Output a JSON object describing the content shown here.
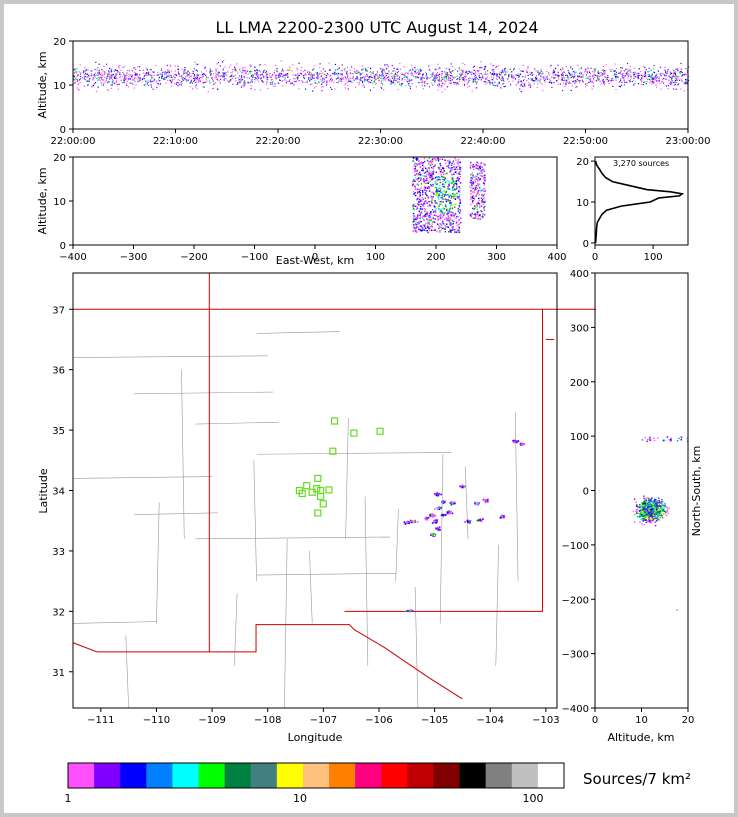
{
  "title": "LL LMA 2200-2300 UTC August 14, 2024",
  "time_panel": {
    "ylabel": "Altitude, km",
    "yticks": [
      0,
      10,
      20
    ],
    "xticks": [
      "22:00:00",
      "22:10:00",
      "22:20:00",
      "22:30:00",
      "22:40:00",
      "22:50:00",
      "23:00:00"
    ]
  },
  "ew_panel": {
    "ylabel": "Altitude, km",
    "xlabel": "East-West, km",
    "yticks": [
      0,
      10,
      20
    ],
    "xticks": [
      -400,
      -300,
      -200,
      -100,
      0,
      100,
      200,
      300,
      400
    ]
  },
  "hist_panel": {
    "sources_label": "3,270 sources",
    "xticks": [
      0,
      100
    ],
    "yticks": [
      0,
      10,
      20
    ]
  },
  "map_panel": {
    "xlabel": "Longitude",
    "ylabel": "Latitude",
    "xticks": [
      -111,
      -110,
      -109,
      -108,
      -107,
      -106,
      -105,
      -104,
      -103
    ],
    "yticks": [
      31,
      32,
      33,
      34,
      35,
      36,
      37
    ]
  },
  "ns_panel": {
    "xlabel": "Altitude, km",
    "ylabel": "North-South, km",
    "xticks": [
      0,
      10,
      20
    ],
    "yticks": [
      -400,
      -300,
      -200,
      -100,
      0,
      100,
      200,
      300,
      400
    ]
  },
  "colorbar": {
    "label": "Sources/7 km²",
    "ticks": [
      "1",
      "10",
      "100"
    ],
    "colors": [
      "#ff50ff",
      "#8000ff",
      "#0000ff",
      "#0080ff",
      "#00ffff",
      "#00ff00",
      "#008040",
      "#408080",
      "#ffff00",
      "#ffc080",
      "#ff8000",
      "#ff0080",
      "#ff0000",
      "#c00000",
      "#800000",
      "#000000",
      "#808080",
      "#c0c0c0",
      "#ffffff"
    ]
  },
  "chart_data": [
    {
      "type": "scatter",
      "panel": "altitude-vs-time",
      "x_range": [
        "22:00:00",
        "23:00:00"
      ],
      "ylim": [
        0,
        20
      ],
      "ylabel": "Altitude, km",
      "note_values": {
        "altitude_band_km": [
          5,
          20
        ],
        "densest_altitude_km": 12
      }
    },
    {
      "type": "scatter",
      "panel": "altitude-vs-east-west",
      "xlim": [
        -400,
        400
      ],
      "ylim": [
        0,
        20
      ],
      "xlabel": "East-West, km",
      "ylabel": "Altitude, km",
      "clusters": [
        {
          "x_range": [
            160,
            240
          ],
          "y_range": [
            3,
            20
          ]
        },
        {
          "x_range": [
            255,
            280
          ],
          "y_range": [
            6,
            19
          ]
        }
      ]
    },
    {
      "type": "line",
      "panel": "altitude-histogram",
      "total_sources": 3270,
      "xlim": [
        0,
        160
      ],
      "ylim": [
        -0.5,
        21
      ],
      "y": [
        0,
        2,
        4,
        5,
        6,
        7,
        8,
        9,
        9.5,
        10,
        11,
        11.5,
        12,
        12.5,
        13,
        14,
        15,
        16,
        17,
        18,
        19,
        20
      ],
      "x": [
        1,
        2,
        3,
        4,
        8,
        12,
        20,
        45,
        70,
        95,
        110,
        145,
        150,
        130,
        90,
        60,
        30,
        18,
        12,
        8,
        3,
        1
      ]
    },
    {
      "type": "scatter",
      "panel": "map",
      "xlim": [
        -111.5,
        -102.8
      ],
      "ylim": [
        30.4,
        37.6
      ],
      "xlabel": "Longitude",
      "ylabel": "Latitude",
      "stations": [
        [
          -106.8,
          35.15
        ],
        [
          -106.45,
          34.95
        ],
        [
          -105.98,
          34.98
        ],
        [
          -106.83,
          34.65
        ],
        [
          -107.1,
          34.2
        ],
        [
          -107.12,
          34.03
        ],
        [
          -107.3,
          34.08
        ],
        [
          -107.43,
          34.0
        ],
        [
          -107.2,
          33.97
        ],
        [
          -107.38,
          33.95
        ],
        [
          -107.05,
          34.0
        ],
        [
          -106.9,
          34.01
        ],
        [
          -107.05,
          33.9
        ],
        [
          -107.0,
          33.78
        ],
        [
          -107.1,
          33.63
        ]
      ],
      "source_cells": [
        [
          -104.95,
          33.95
        ],
        [
          -104.85,
          33.82
        ],
        [
          -104.7,
          33.8
        ],
        [
          -104.95,
          33.72
        ],
        [
          -105.05,
          33.6
        ],
        [
          -104.85,
          33.6
        ],
        [
          -104.75,
          33.65
        ],
        [
          -105.15,
          33.55
        ],
        [
          -105.0,
          33.5
        ],
        [
          -105.4,
          33.5
        ],
        [
          -105.5,
          33.48
        ],
        [
          -104.95,
          33.38
        ],
        [
          -105.05,
          33.28
        ],
        [
          -104.1,
          33.85
        ],
        [
          -104.25,
          33.8
        ],
        [
          -104.4,
          33.5
        ],
        [
          -104.2,
          33.52
        ],
        [
          -104.5,
          34.08
        ],
        [
          -103.8,
          33.58
        ],
        [
          -103.55,
          34.82
        ],
        [
          -103.45,
          34.78
        ],
        [
          -105.45,
          32.02
        ]
      ]
    },
    {
      "type": "scatter",
      "panel": "north-south-vs-altitude",
      "xlim": [
        0,
        20
      ],
      "ylim": [
        -400,
        400
      ],
      "xlabel": "Altitude, km",
      "ylabel": "North-South, km",
      "clusters": [
        {
          "x_range": [
            3,
            20
          ],
          "y_range": [
            -70,
            0
          ]
        },
        {
          "x_range": [
            10,
            20
          ],
          "y_range": [
            90,
            100
          ]
        }
      ]
    }
  ]
}
